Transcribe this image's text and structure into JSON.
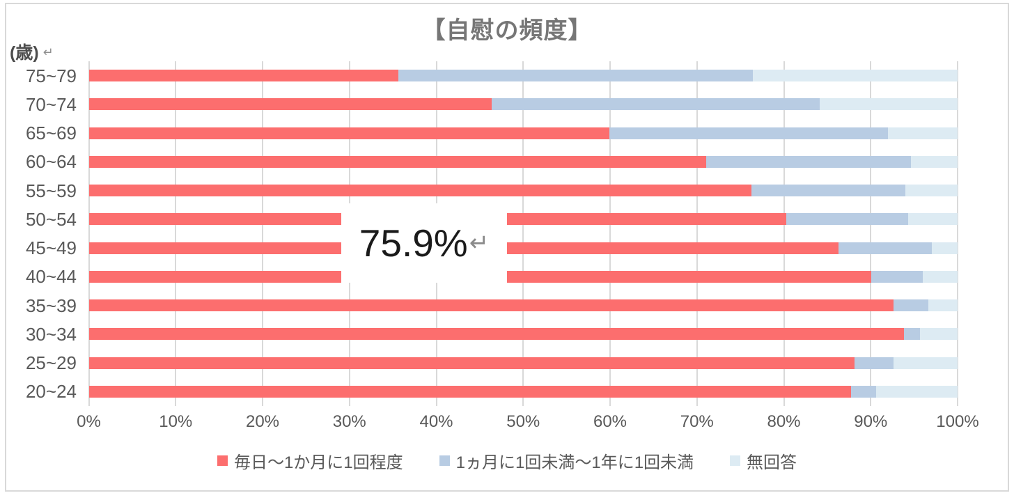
{
  "title": "【自慰の頻度】",
  "y_axis_unit": "(歳)",
  "marks": {
    "line_break": "↵"
  },
  "annotation": {
    "value": "75.9%",
    "mark": "↵"
  },
  "colors": {
    "series_daily": "#FC6E6E",
    "series_rare": "#B8CCE3",
    "series_no_answer": "#DDEBF3",
    "gridline": "#D9D9D9",
    "axis_text": "#595959",
    "title_text": "#767676",
    "border": "#D9D9D9"
  },
  "chart_data": {
    "type": "bar",
    "orientation": "horizontal",
    "stacked": true,
    "title": "【自慰の頻度】",
    "xlabel": "",
    "ylabel": "(歳)",
    "xlim": [
      0,
      100
    ],
    "grid": true,
    "legend_position": "bottom",
    "categories": [
      "75~79",
      "70~74",
      "65~69",
      "60~64",
      "55~59",
      "50~54",
      "45~49",
      "40~44",
      "35~39",
      "30~34",
      "25~29",
      "20~24"
    ],
    "x_ticks": [
      "0%",
      "10%",
      "20%",
      "30%",
      "40%",
      "50%",
      "60%",
      "70%",
      "80%",
      "90%",
      "100%"
    ],
    "series": [
      {
        "name": "毎日～1か月に1回程度",
        "color": "#FC6E6E",
        "values": [
          35.6,
          46.4,
          59.9,
          71.1,
          76.3,
          80.3,
          86.3,
          90.1,
          92.6,
          93.8,
          88.1,
          87.7
        ]
      },
      {
        "name": "1ヵ月に1回未満～1年に1回未満",
        "color": "#B8CCE3",
        "values": [
          40.8,
          37.7,
          32.1,
          23.5,
          17.7,
          14.0,
          10.7,
          5.9,
          4.0,
          1.9,
          4.5,
          2.9
        ]
      },
      {
        "name": "無回答",
        "color": "#DDEBF3",
        "values": [
          23.6,
          15.9,
          8.0,
          5.4,
          6.0,
          5.7,
          3.0,
          4.0,
          3.4,
          4.3,
          7.4,
          9.4
        ]
      }
    ],
    "annotation_overlay": {
      "text": "75.9%",
      "region_rows": [
        "50~54",
        "45~49",
        "40~44"
      ]
    }
  }
}
